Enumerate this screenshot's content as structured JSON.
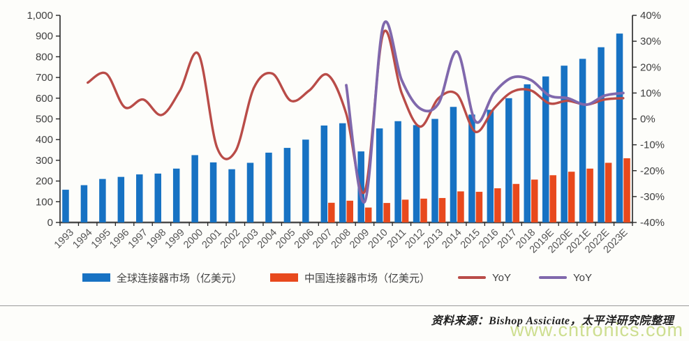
{
  "footer": {
    "source_note": "资料来源：Bishop Assiciate，太平洋研究院整理",
    "watermark": "www.cntronics.com"
  },
  "chart_data": {
    "type": "bar",
    "subtype": "combo-bar-line-dual-axis",
    "categories": [
      "1993",
      "1994",
      "1995",
      "1996",
      "1997",
      "1998",
      "1999",
      "2000",
      "2001",
      "2002",
      "2003",
      "2004",
      "2005",
      "2006",
      "2007",
      "2008",
      "2009",
      "2010",
      "2011",
      "2012",
      "2013",
      "2014",
      "2015",
      "2016",
      "2017",
      "2018",
      "2019E",
      "2020E",
      "2021E",
      "2022E",
      "2023E"
    ],
    "series": [
      {
        "name": "全球连接器市场（亿美元）",
        "type": "bar",
        "axis": "left",
        "color": "#1772C3",
        "values": [
          158,
          180,
          210,
          220,
          232,
          236,
          260,
          325,
          290,
          257,
          288,
          337,
          360,
          400,
          468,
          479,
          343,
          454,
          489,
          470,
          500,
          558,
          521,
          544,
          600,
          667,
          705,
          757,
          790,
          846,
          912
        ]
      },
      {
        "name": "中国连接器市场（亿美元）",
        "type": "bar",
        "axis": "left",
        "color": "#E8491D",
        "values": [
          null,
          null,
          null,
          null,
          null,
          null,
          null,
          null,
          null,
          null,
          null,
          null,
          null,
          null,
          95,
          105,
          72,
          94,
          110,
          115,
          118,
          150,
          148,
          165,
          186,
          207,
          228,
          245,
          260,
          288,
          310
        ]
      },
      {
        "name": "YoY",
        "type": "line",
        "axis": "right",
        "color": "#B94C48",
        "values": [
          null,
          14,
          17.5,
          4.5,
          7.5,
          1.5,
          11,
          25,
          -11,
          -12.5,
          12,
          17.5,
          7,
          11,
          17,
          2,
          -28,
          33,
          10,
          -3,
          8,
          9.5,
          -5,
          4,
          10.5,
          11,
          6,
          7,
          5.5,
          7.5,
          8
        ]
      },
      {
        "name": "YoY",
        "type": "line",
        "axis": "right",
        "color": "#8068AC",
        "values": [
          null,
          null,
          null,
          null,
          null,
          null,
          null,
          null,
          null,
          null,
          null,
          null,
          null,
          null,
          null,
          13,
          -32,
          36,
          15,
          4,
          6,
          26,
          -1,
          10,
          16,
          15,
          9,
          8,
          5.5,
          9,
          10
        ]
      }
    ],
    "left_axis": {
      "min": 0,
      "max": 1000,
      "step": 100,
      "labels": [
        "0",
        "100",
        "200",
        "300",
        "400",
        "500",
        "600",
        "700",
        "800",
        "900",
        "1,000"
      ]
    },
    "right_axis": {
      "min": -40,
      "max": 40,
      "step": 10,
      "labels": [
        "-40%",
        "-30%",
        "-20%",
        "-10%",
        "0%",
        "10%",
        "20%",
        "30%",
        "40%"
      ]
    },
    "grid": false,
    "legend_position": "bottom"
  }
}
